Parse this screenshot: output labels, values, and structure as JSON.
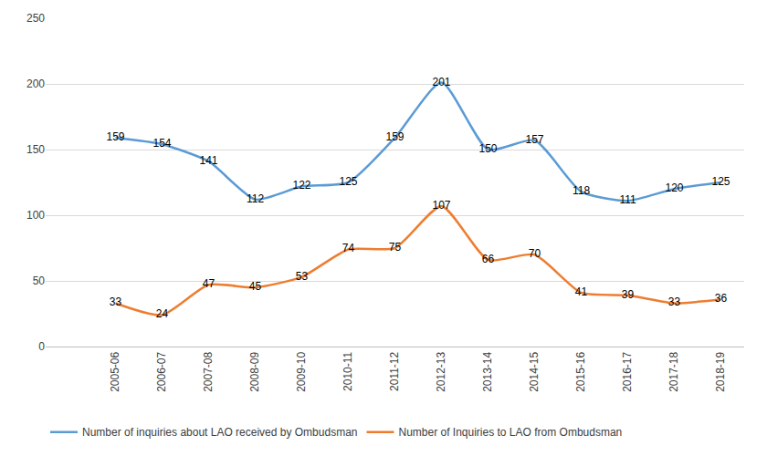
{
  "chart_data": {
    "type": "line",
    "categories": [
      null,
      "2005-06",
      "2006-07",
      "2007-08",
      "2008-09",
      "2009-10",
      "2010-11",
      "2011-12",
      "2012-13",
      "2013-14",
      "2014-15",
      "2015-16",
      "2016-17",
      "2017-18",
      "2018-19"
    ],
    "series": [
      {
        "name": "Number of inquiries about LAO received by Ombudsman",
        "color": "#5b9bd5",
        "values": [
          null,
          159,
          154,
          141,
          112,
          122,
          125,
          159,
          201,
          150,
          157,
          118,
          111,
          120,
          125
        ]
      },
      {
        "name": "Number of Inquiries to LAO from Ombudsman",
        "color": "#ed7d31",
        "values": [
          null,
          33,
          24,
          47,
          45,
          53,
          74,
          75,
          107,
          66,
          70,
          41,
          39,
          33,
          36
        ]
      }
    ],
    "ylim": [
      0,
      250
    ],
    "yticks": [
      0,
      50,
      100,
      150,
      200,
      250
    ],
    "grid": true,
    "legend": "bottom",
    "data_labels": true
  }
}
